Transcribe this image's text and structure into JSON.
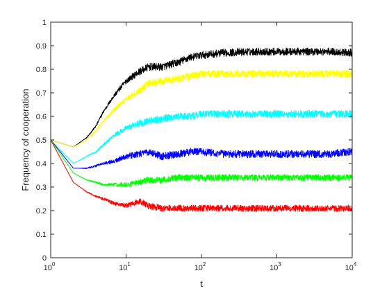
{
  "chart_data": {
    "type": "line",
    "title": "",
    "xlabel": "t",
    "ylabel": "Frequency of cooperation",
    "xscale": "log",
    "xlim": [
      1,
      10000
    ],
    "ylim": [
      0,
      1
    ],
    "grid": false,
    "legend": "none",
    "x_ticks": [
      {
        "value": 1,
        "base": "10",
        "exp": "0"
      },
      {
        "value": 10,
        "base": "10",
        "exp": "1"
      },
      {
        "value": 100,
        "base": "10",
        "exp": "2"
      },
      {
        "value": 1000,
        "base": "10",
        "exp": "3"
      },
      {
        "value": 10000,
        "base": "10",
        "exp": "4"
      }
    ],
    "y_ticks": [
      {
        "value": 0,
        "label": "0"
      },
      {
        "value": 0.1,
        "label": "0.1"
      },
      {
        "value": 0.2,
        "label": "0.2"
      },
      {
        "value": 0.3,
        "label": "0.3"
      },
      {
        "value": 0.4,
        "label": "0.4"
      },
      {
        "value": 0.5,
        "label": "0.5"
      },
      {
        "value": 0.6,
        "label": "0.6"
      },
      {
        "value": 0.7,
        "label": "0.7"
      },
      {
        "value": 0.8,
        "label": "0.8"
      },
      {
        "value": 0.9,
        "label": "0.9"
      },
      {
        "value": 1,
        "label": "1"
      }
    ],
    "series": [
      {
        "color": "#000000",
        "noise": 0.016,
        "x": [
          1,
          2,
          3,
          4,
          5,
          7,
          10,
          15,
          20,
          30,
          50,
          70,
          100,
          200,
          500,
          1000,
          2000,
          5000,
          10000
        ],
        "y": [
          0.5,
          0.47,
          0.51,
          0.56,
          0.62,
          0.69,
          0.75,
          0.79,
          0.81,
          0.81,
          0.83,
          0.85,
          0.86,
          0.87,
          0.875,
          0.875,
          0.875,
          0.875,
          0.87
        ]
      },
      {
        "color": "#ffff00",
        "noise": 0.016,
        "x": [
          1,
          2,
          3,
          4,
          5,
          7,
          10,
          15,
          20,
          30,
          50,
          70,
          100,
          200,
          500,
          1000,
          2000,
          5000,
          10000
        ],
        "y": [
          0.5,
          0.47,
          0.5,
          0.54,
          0.58,
          0.63,
          0.67,
          0.71,
          0.74,
          0.75,
          0.76,
          0.77,
          0.78,
          0.78,
          0.78,
          0.78,
          0.78,
          0.78,
          0.78
        ]
      },
      {
        "color": "#00ffff",
        "noise": 0.016,
        "x": [
          1,
          2,
          3,
          4,
          5,
          7,
          10,
          15,
          20,
          30,
          50,
          70,
          100,
          200,
          500,
          1000,
          2000,
          5000,
          10000
        ],
        "y": [
          0.5,
          0.4,
          0.43,
          0.45,
          0.48,
          0.52,
          0.55,
          0.57,
          0.58,
          0.59,
          0.6,
          0.6,
          0.61,
          0.61,
          0.61,
          0.61,
          0.61,
          0.61,
          0.61
        ]
      },
      {
        "color": "#0000ff",
        "noise": 0.016,
        "x": [
          1,
          2,
          3,
          4,
          5,
          7,
          10,
          15,
          20,
          30,
          50,
          70,
          100,
          200,
          500,
          1000,
          2000,
          5000,
          10000
        ],
        "y": [
          0.5,
          0.38,
          0.38,
          0.39,
          0.4,
          0.41,
          0.43,
          0.44,
          0.45,
          0.43,
          0.44,
          0.45,
          0.45,
          0.44,
          0.44,
          0.44,
          0.44,
          0.44,
          0.45
        ]
      },
      {
        "color": "#00ff00",
        "noise": 0.014,
        "x": [
          1,
          2,
          3,
          4,
          5,
          7,
          10,
          15,
          20,
          30,
          50,
          70,
          100,
          200,
          500,
          1000,
          2000,
          5000,
          10000
        ],
        "y": [
          0.5,
          0.36,
          0.33,
          0.32,
          0.31,
          0.31,
          0.31,
          0.32,
          0.33,
          0.33,
          0.34,
          0.34,
          0.34,
          0.34,
          0.34,
          0.34,
          0.34,
          0.34,
          0.34
        ]
      },
      {
        "color": "#ff0000",
        "noise": 0.014,
        "x": [
          1,
          2,
          3,
          4,
          5,
          7,
          10,
          15,
          20,
          30,
          50,
          70,
          100,
          200,
          500,
          1000,
          2000,
          5000,
          10000
        ],
        "y": [
          0.5,
          0.32,
          0.28,
          0.26,
          0.25,
          0.23,
          0.22,
          0.24,
          0.22,
          0.21,
          0.21,
          0.21,
          0.21,
          0.21,
          0.21,
          0.21,
          0.21,
          0.21,
          0.21
        ]
      }
    ]
  }
}
